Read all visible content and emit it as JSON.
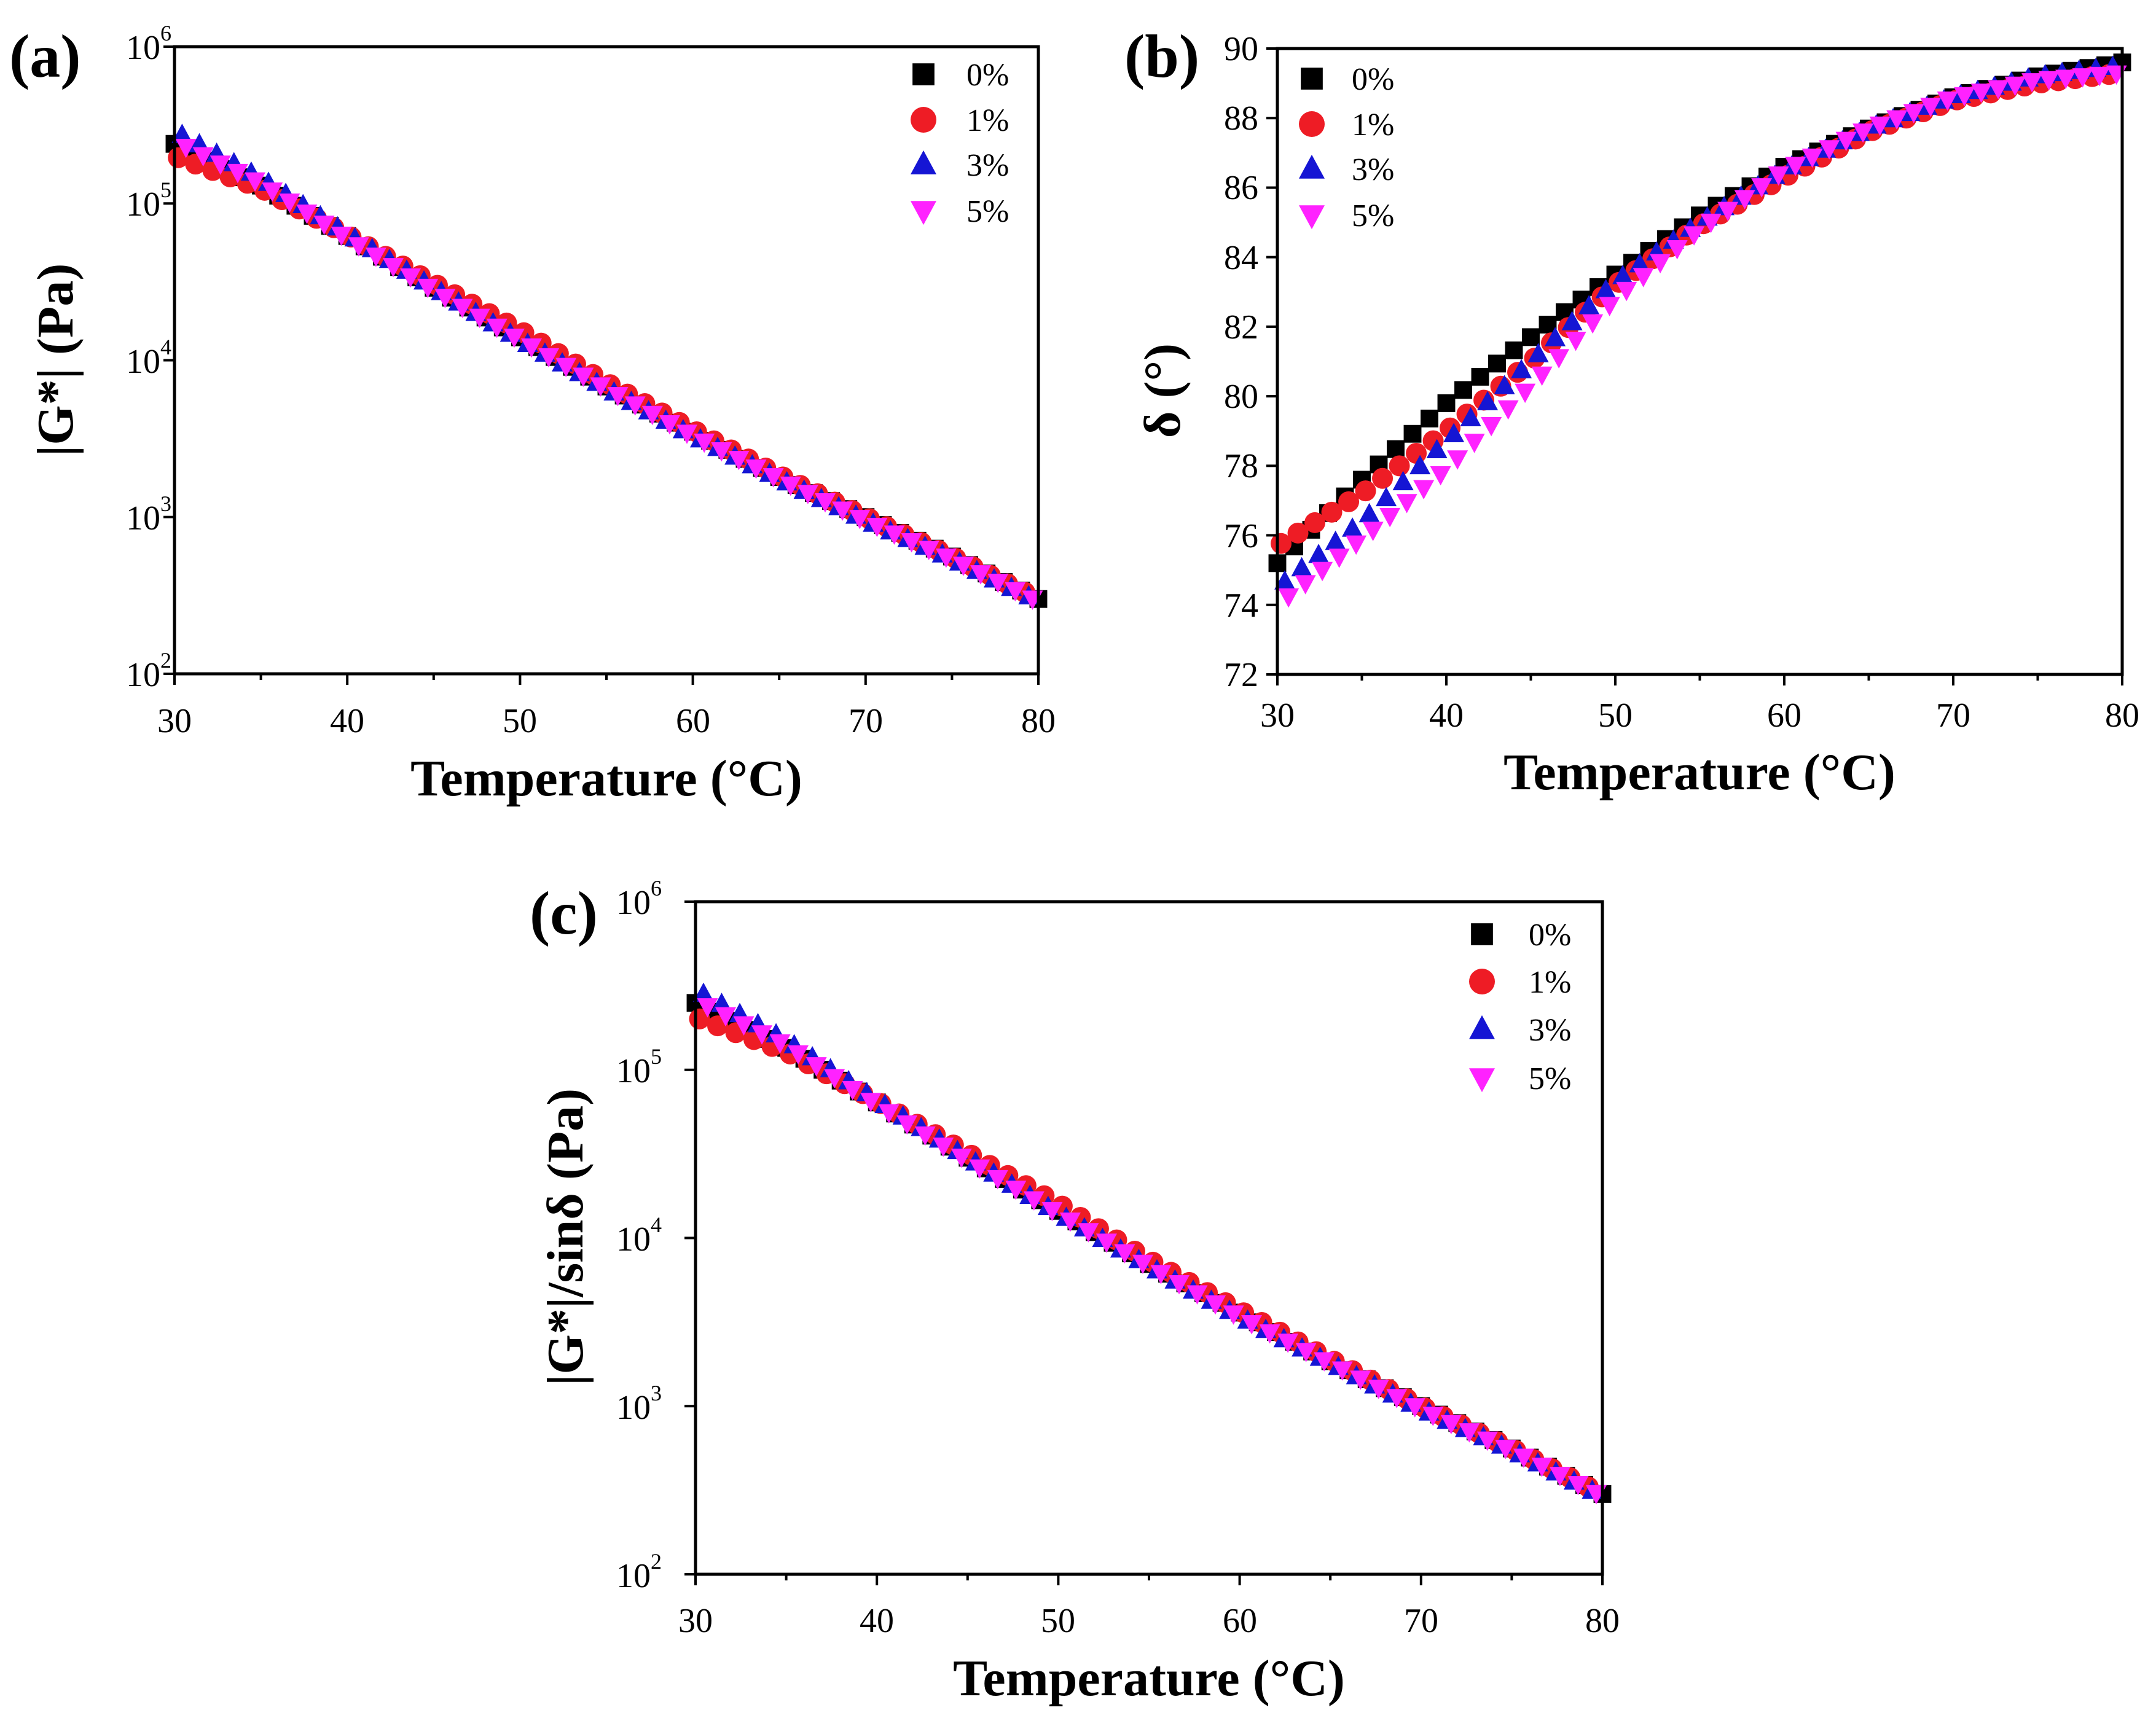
{
  "figure": {
    "colors": {
      "s0": "#000000",
      "s1": "#ee1c25",
      "s3": "#1515d4",
      "s5": "#ff22ff"
    },
    "markers": {
      "s0": "square",
      "s1": "circle",
      "s3": "triangle-up",
      "s5": "triangle-down"
    }
  },
  "chart_data": [
    {
      "id": "a",
      "panel_label": "(a)",
      "type": "scatter",
      "xlabel": "Temperature (°C)",
      "ylabel": "|G*| (Pa)",
      "yscale": "log",
      "xlim": [
        30,
        80
      ],
      "ylim": [
        100,
        1000000
      ],
      "x_ticks": [
        "30",
        "40",
        "50",
        "60",
        "70",
        "80"
      ],
      "y_ticks": [
        {
          "base": "10",
          "exp": "2"
        },
        {
          "base": "10",
          "exp": "3"
        },
        {
          "base": "10",
          "exp": "4"
        },
        {
          "base": "10",
          "exp": "5"
        },
        {
          "base": "10",
          "exp": "6"
        }
      ],
      "legend": [
        "0%",
        "1%",
        "3%",
        "5%"
      ],
      "legend_position": "top-right",
      "x": [
        30,
        35,
        40,
        45,
        50,
        55,
        60,
        65,
        70,
        75,
        80
      ],
      "series": [
        {
          "name": "0%",
          "values": [
            240000,
            130000,
            62000,
            29000,
            14000,
            6800,
            3500,
            1800,
            1000,
            560,
            300
          ]
        },
        {
          "name": "1%",
          "values": [
            200000,
            125000,
            63000,
            31000,
            15500,
            7200,
            3600,
            1850,
            1000,
            560,
            300
          ]
        },
        {
          "name": "3%",
          "values": [
            290000,
            145000,
            64000,
            29000,
            13500,
            6600,
            3300,
            1750,
            950,
            540,
            290
          ]
        },
        {
          "name": "5%",
          "values": [
            250000,
            135000,
            60000,
            28000,
            13500,
            6600,
            3300,
            1750,
            950,
            540,
            290
          ]
        }
      ]
    },
    {
      "id": "b",
      "panel_label": "(b)",
      "type": "scatter",
      "xlabel": "Temperature (°C)",
      "ylabel": "δ (°)",
      "yscale": "linear",
      "xlim": [
        30,
        80
      ],
      "ylim": [
        72,
        90
      ],
      "x_ticks": [
        "30",
        "40",
        "50",
        "60",
        "70",
        "80"
      ],
      "y_ticks": [
        "72",
        "74",
        "76",
        "78",
        "80",
        "82",
        "84",
        "86",
        "88",
        "90"
      ],
      "legend": [
        "0%",
        "1%",
        "3%",
        "5%"
      ],
      "legend_position": "top-left",
      "x": [
        30,
        35,
        40,
        45,
        50,
        55,
        60,
        65,
        70,
        75,
        80
      ],
      "series": [
        {
          "name": "0%",
          "values": [
            75.2,
            77.6,
            79.8,
            81.7,
            83.5,
            85.2,
            86.6,
            87.7,
            88.6,
            89.2,
            89.6
          ]
        },
        {
          "name": "1%",
          "values": [
            75.7,
            77.2,
            79.0,
            81.0,
            83.2,
            84.9,
            86.3,
            87.6,
            88.5,
            89.0,
            89.3
          ]
        },
        {
          "name": "3%",
          "values": [
            74.5,
            76.4,
            78.7,
            81.0,
            83.3,
            85.0,
            86.5,
            87.7,
            88.6,
            89.2,
            89.5
          ]
        },
        {
          "name": "5%",
          "values": [
            74.0,
            75.9,
            77.9,
            80.3,
            82.8,
            84.8,
            86.5,
            87.7,
            88.6,
            89.1,
            89.3
          ]
        }
      ]
    },
    {
      "id": "c",
      "panel_label": "(c)",
      "type": "scatter",
      "xlabel": "Temperature (°C)",
      "ylabel": "|G*|/sinδ (Pa)",
      "yscale": "log",
      "xlim": [
        30,
        80
      ],
      "ylim": [
        100,
        1000000
      ],
      "x_ticks": [
        "30",
        "40",
        "50",
        "60",
        "70",
        "80"
      ],
      "y_ticks": [
        {
          "base": "10",
          "exp": "2"
        },
        {
          "base": "10",
          "exp": "3"
        },
        {
          "base": "10",
          "exp": "4"
        },
        {
          "base": "10",
          "exp": "5"
        },
        {
          "base": "10",
          "exp": "6"
        }
      ],
      "legend": [
        "0%",
        "1%",
        "3%",
        "5%"
      ],
      "legend_position": "top-right",
      "x": [
        30,
        35,
        40,
        45,
        50,
        55,
        60,
        65,
        70,
        75,
        80
      ],
      "series": [
        {
          "name": "0%",
          "values": [
            250000,
            135000,
            64000,
            30000,
            14500,
            7000,
            3600,
            1850,
            1000,
            560,
            300
          ]
        },
        {
          "name": "1%",
          "values": [
            205000,
            128000,
            65000,
            32000,
            16000,
            7400,
            3700,
            1900,
            1000,
            560,
            300
          ]
        },
        {
          "name": "3%",
          "values": [
            300000,
            150000,
            66000,
            30000,
            14000,
            6800,
            3400,
            1800,
            960,
            545,
            292
          ]
        },
        {
          "name": "5%",
          "values": [
            260000,
            140000,
            62000,
            29000,
            14000,
            6800,
            3400,
            1800,
            960,
            545,
            292
          ]
        }
      ]
    }
  ]
}
